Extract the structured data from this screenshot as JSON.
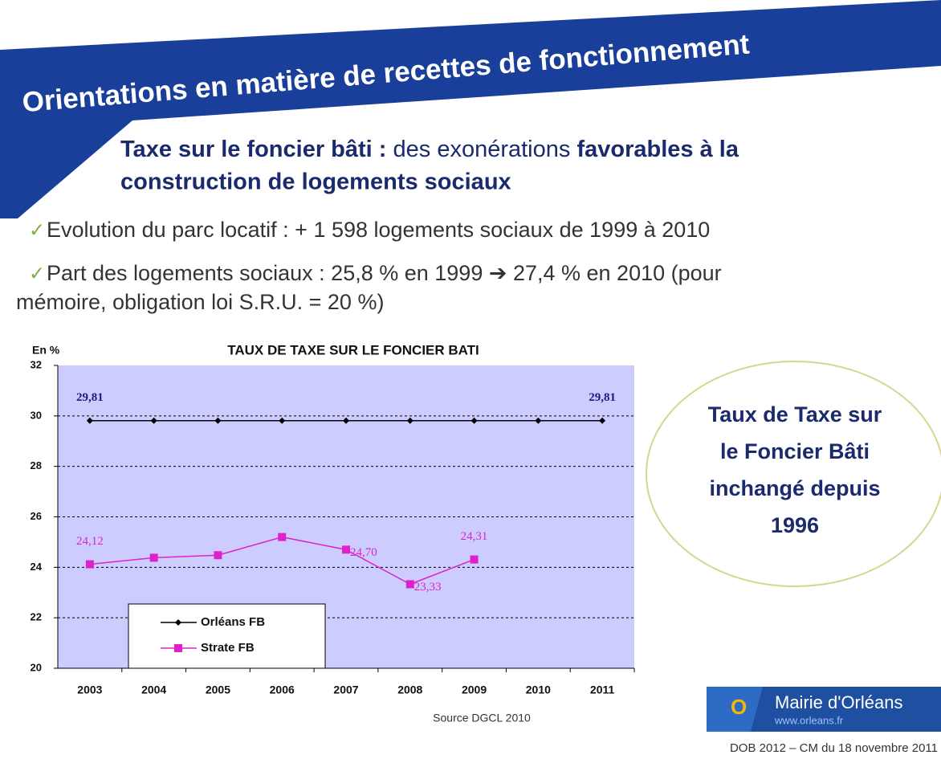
{
  "header": {
    "title": "Orientations en matière de recettes de fonctionnement"
  },
  "subtitle": {
    "part1": "Taxe sur le foncier bâti :",
    "part2": "des exonérations",
    "part3": "favorables à la",
    "line2": "construction de logements sociaux"
  },
  "bullets": [
    "Evolution du parc locatif : + 1 598 logements sociaux de 1999 à 2010",
    "Part des logements sociaux : 25,8 % en 1999 ➔ 27,4 % en 2010 (pour",
    "mémoire, obligation loi S.R.U. = 20 %)"
  ],
  "chart_data": {
    "type": "line",
    "title": "TAUX DE TAXE SUR LE FONCIER BATI",
    "y_label": "En %",
    "source": "Source DGCL 2010",
    "categories": [
      "2003",
      "2004",
      "2005",
      "2006",
      "2007",
      "2008",
      "2009",
      "2010",
      "2011"
    ],
    "series": [
      {
        "name": "Orléans FB",
        "color": "#000000",
        "marker": "diamond",
        "values": [
          29.81,
          29.81,
          29.81,
          29.81,
          29.81,
          29.81,
          29.81,
          29.81,
          29.81
        ],
        "value_labels": [
          "29,81",
          null,
          null,
          null,
          null,
          null,
          null,
          null,
          "29,81"
        ]
      },
      {
        "name": "Strate FB",
        "color": "#dd22cc",
        "marker": "square",
        "values": [
          24.12,
          24.38,
          24.48,
          25.2,
          24.7,
          23.33,
          24.31,
          null,
          null
        ],
        "value_labels": [
          "24,12",
          null,
          null,
          null,
          "24,70",
          "23,33",
          "24,31",
          null,
          null
        ]
      }
    ],
    "ylim": [
      20,
      32
    ],
    "yticks": [
      20,
      22,
      24,
      26,
      28,
      30,
      32
    ],
    "grid": true
  },
  "callout": [
    "Taux de Taxe sur",
    "le Foncier Bâti",
    "inchangé depuis",
    "1996"
  ],
  "logo": {
    "name": "Mairie d'Orléans",
    "url": "www.orleans.fr"
  },
  "footer": "DOB 2012 – CM du 18 novembre 2011"
}
